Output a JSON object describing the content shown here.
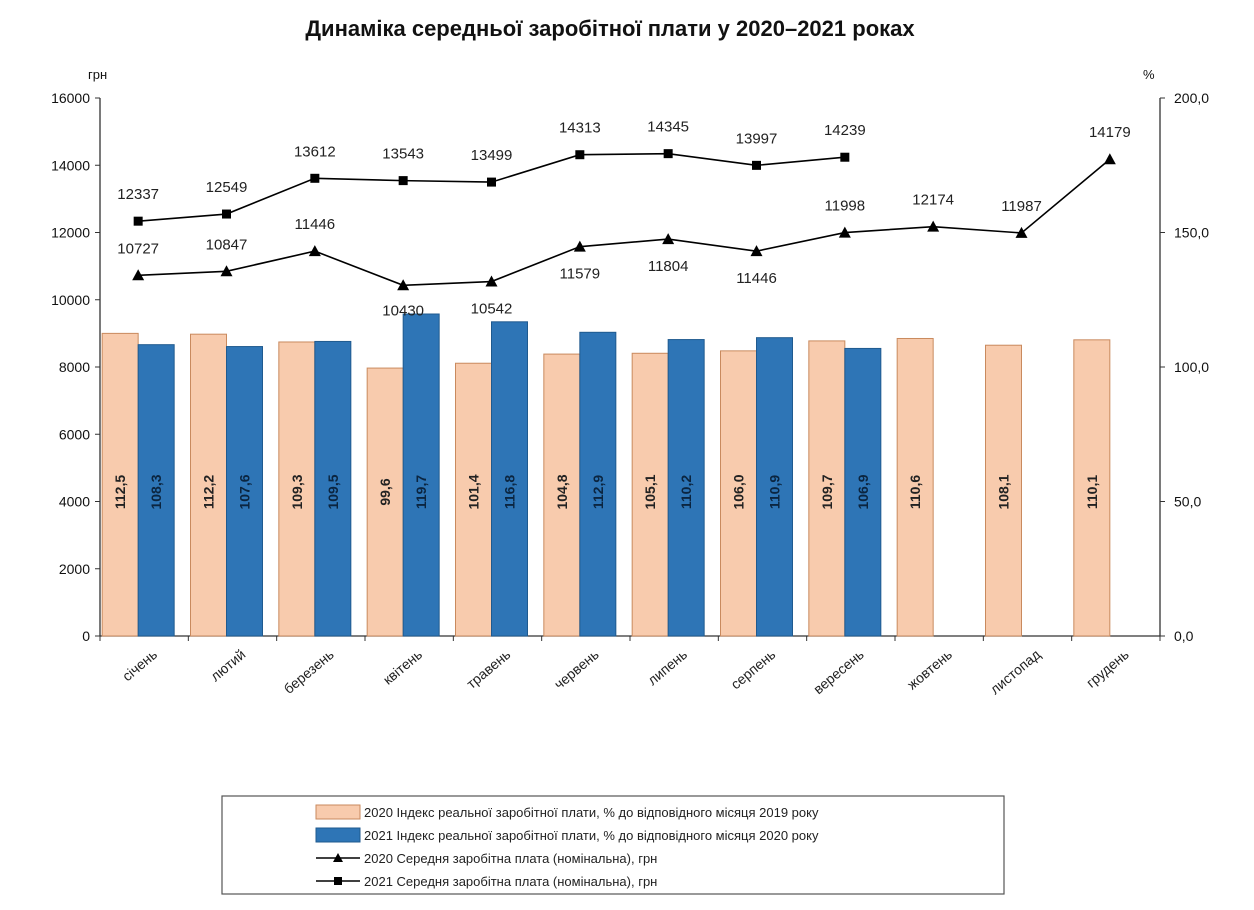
{
  "chart_data": {
    "type": "bar",
    "title": "Динаміка середньої заробітної плати у 2020–2021 роках",
    "left_axis": {
      "unit": "грн",
      "range": [
        0,
        16000
      ],
      "ticks": [
        "0",
        "2000",
        "4000",
        "6000",
        "8000",
        "10000",
        "12000",
        "14000",
        "16000"
      ]
    },
    "right_axis": {
      "unit": "%",
      "range": [
        0,
        200
      ],
      "ticks": [
        "0,0",
        "50,0",
        "100,0",
        "150,0",
        "200,0"
      ]
    },
    "categories": [
      "січень",
      "лютий",
      "березень",
      "квітень",
      "травень",
      "червень",
      "липень",
      "серпень",
      "вересень",
      "жовтень",
      "листопад",
      "грудень"
    ],
    "series": [
      {
        "name": "2020 Індекс реальної заробітної плати, % до відповідного місяця 2019 року",
        "type": "bar",
        "axis": "right",
        "color": "#F8CBAD",
        "border": "#C98A5E",
        "values": [
          112.5,
          112.2,
          109.3,
          99.6,
          101.4,
          104.8,
          105.1,
          106.0,
          109.7,
          110.6,
          108.1,
          110.1
        ],
        "labels": [
          "112,5",
          "112,2",
          "109,3",
          "99,6",
          "101,4",
          "104,8",
          "105,1",
          "106,0",
          "109,7",
          "110,6",
          "108,1",
          "110,1"
        ]
      },
      {
        "name": "2021 Індекс реальної заробітної плати, % до відповідного місяця 2020 року",
        "type": "bar",
        "axis": "right",
        "color": "#2E75B6",
        "border": "#1F5A8F",
        "values": [
          108.3,
          107.6,
          109.5,
          119.7,
          116.8,
          112.9,
          110.2,
          110.9,
          106.9,
          null,
          null,
          null
        ],
        "labels": [
          "108,3",
          "107,6",
          "109,5",
          "119,7",
          "116,8",
          "112,9",
          "110,2",
          "110,9",
          "106,9",
          null,
          null,
          null
        ]
      },
      {
        "name": "2020 Середня заробітна плата (номінальна), грн",
        "type": "line",
        "marker": "triangle",
        "axis": "left",
        "color": "#000000",
        "values": [
          10727,
          10847,
          11446,
          10430,
          10542,
          11579,
          11804,
          11446,
          11998,
          12174,
          11987,
          14179
        ]
      },
      {
        "name": "2021 Середня заробітна плата (номінальна), грн",
        "type": "line",
        "marker": "square",
        "axis": "left",
        "color": "#000000",
        "values": [
          12337,
          12549,
          13612,
          13543,
          13499,
          14313,
          14345,
          13997,
          14239,
          null,
          null,
          null
        ]
      }
    ],
    "grid": false,
    "legend_placement": "bottom"
  }
}
